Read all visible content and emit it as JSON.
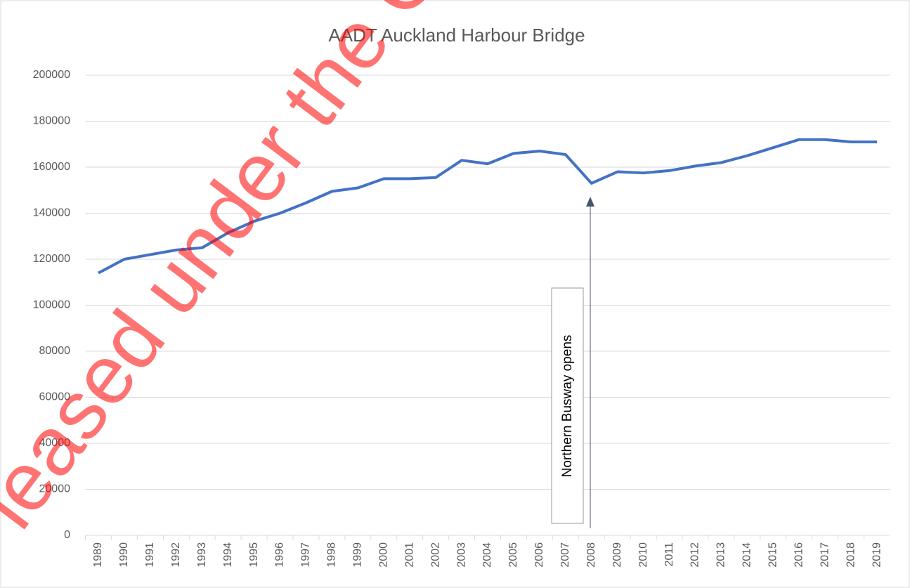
{
  "chart_data": {
    "type": "line",
    "title": "AADT Auckland Harbour Bridge",
    "categories": [
      "1989",
      "1990",
      "1991",
      "1992",
      "1993",
      "1994",
      "1995",
      "1996",
      "1997",
      "1998",
      "1999",
      "2000",
      "2001",
      "2002",
      "2003",
      "2004",
      "2005",
      "2006",
      "2007",
      "2008",
      "2009",
      "2010",
      "2011",
      "2012",
      "2013",
      "2014",
      "2015",
      "2016",
      "2017",
      "2018",
      "2019"
    ],
    "series": [
      {
        "name": "AADT",
        "color": "#4472c4",
        "values": [
          114000,
          120000,
          122000,
          124000,
          125000,
          131500,
          136500,
          140000,
          144500,
          149500,
          151000,
          155000,
          155000,
          155500,
          163000,
          161500,
          166000,
          167000,
          165500,
          153000,
          158000,
          157500,
          158500,
          160500,
          162000,
          165000,
          168500,
          172000,
          172000,
          171000,
          171000
        ]
      }
    ],
    "ylim": [
      0,
      200000
    ],
    "yticks": [
      0,
      20000,
      40000,
      60000,
      80000,
      100000,
      120000,
      140000,
      160000,
      180000,
      200000
    ],
    "grid": true,
    "annotation": "Northern Busway opens",
    "watermark": "leased under the Official"
  }
}
